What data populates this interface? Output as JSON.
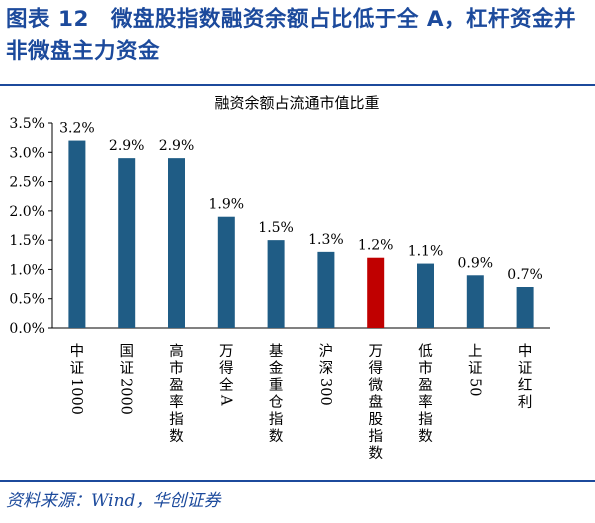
{
  "figure": {
    "title": "图表 12　微盘股指数融资余额占比低于全 A，杠杆资金并非微盘主力资金",
    "source": "资料来源：Wind，华创证券"
  },
  "chart_data": {
    "type": "bar",
    "title": "融资余额占流通市值比重",
    "categories": [
      "中证1000",
      "国证2000",
      "高市盈率指数",
      "万得全A",
      "基金重仓指数",
      "沪深300",
      "万得微盘股指数",
      "低市盈率指数",
      "上证50",
      "中证红利"
    ],
    "values": [
      3.2,
      2.9,
      2.9,
      1.9,
      1.5,
      1.3,
      1.2,
      1.1,
      0.9,
      0.7
    ],
    "value_labels": [
      "3.2%",
      "2.9%",
      "2.9%",
      "1.9%",
      "1.5%",
      "1.3%",
      "1.2%",
      "1.1%",
      "0.9%",
      "0.7%"
    ],
    "yticks": [
      0,
      0.5,
      1.0,
      1.5,
      2.0,
      2.5,
      3.0,
      3.5
    ],
    "ytick_labels": [
      "0.0%",
      "0.5%",
      "1.0%",
      "1.5%",
      "2.0%",
      "2.5%",
      "3.0%",
      "3.5%"
    ],
    "ylim": [
      0,
      3.5
    ],
    "xlabel": "",
    "ylabel": "",
    "grid": false,
    "colors": {
      "default": "#1f5c85",
      "highlight": "#c00000"
    },
    "highlight_index": 6
  }
}
